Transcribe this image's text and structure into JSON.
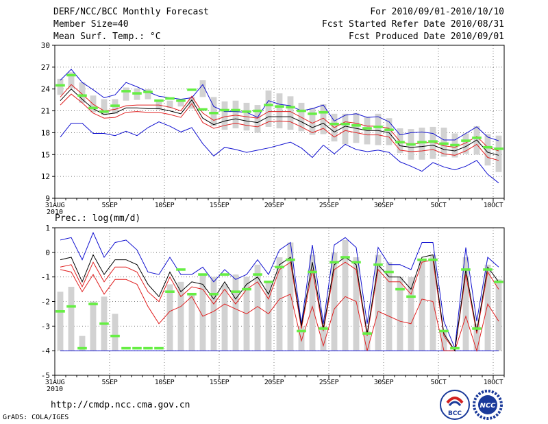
{
  "header": {
    "title": "DERF/NCC/BCC Monthly Forecast",
    "member_size": "Member Size=40",
    "variable": "Mean Surf. Temp.: °C",
    "period": "For 2010/09/01-2010/10/10",
    "started": "Fcst Started Refer Date 2010/08/31",
    "produced": "Fcst Produced Date 2010/09/01"
  },
  "precip_label": "Prec.: log(mm/d)",
  "footer": {
    "url": "http://cmdp.ncc.cma.gov.cn",
    "credit": "GrADS: COLA/IGES"
  },
  "logos": {
    "bcc_text": "BCC",
    "ncc_text": "NCC"
  },
  "colors": {
    "box": "#d2d2d2",
    "mean": "#000000",
    "sd": "#e02020",
    "range": "#1010d0",
    "obs": "#66ee44"
  },
  "chart_data": [
    {
      "type": "box-ensemble",
      "name": "Mean Surf. Temp.",
      "ylabel": "°C",
      "ylim": [
        9,
        30
      ],
      "yticks": [
        9,
        12,
        15,
        18,
        21,
        24,
        27,
        30
      ],
      "x_days": 41,
      "x_ticks": [
        {
          "day": 0,
          "label": "31AUG",
          "sub": "2010"
        },
        {
          "day": 5,
          "label": "5SEP"
        },
        {
          "day": 10,
          "label": "10SEP"
        },
        {
          "day": 15,
          "label": "15SEP"
        },
        {
          "day": 20,
          "label": "20SEP"
        },
        {
          "day": 25,
          "label": "25SEP"
        },
        {
          "day": 30,
          "label": "30SEP"
        },
        {
          "day": 35,
          "label": "5OCT"
        },
        {
          "day": 40,
          "label": "10OCT"
        }
      ],
      "box_low": [
        23.2,
        24.1,
        22.1,
        20.8,
        20.4,
        20.6,
        22.4,
        22.5,
        22.6,
        21.2,
        21.4,
        21.6,
        21.3,
        22.9,
        18.9,
        18.4,
        18.6,
        18.3,
        18.0,
        18.8,
        18.6,
        18.4,
        18.2,
        17.7,
        17.8,
        16.8,
        16.4,
        16.6,
        16.4,
        16.3,
        16.3,
        15.2,
        14.3,
        14.3,
        14.4,
        14.7,
        14.6,
        15.1,
        15.0,
        13.5,
        12.6
      ],
      "box_high": [
        25.4,
        26.3,
        24.9,
        23.1,
        22.6,
        22.6,
        24.2,
        24.1,
        24.0,
        22.3,
        22.4,
        22.5,
        22.9,
        25.2,
        22.9,
        22.3,
        22.4,
        22.1,
        21.8,
        23.8,
        23.4,
        23.0,
        22.1,
        21.4,
        21.9,
        20.6,
        20.6,
        20.7,
        20.2,
        20.6,
        20.0,
        18.6,
        18.5,
        18.7,
        18.8,
        18.7,
        17.9,
        17.9,
        18.9,
        17.8,
        17.6
      ],
      "upper": [
        25.2,
        26.7,
        24.9,
        23.9,
        22.8,
        23.2,
        24.9,
        24.3,
        23.6,
        23.0,
        22.8,
        22.6,
        22.8,
        24.6,
        21.6,
        20.9,
        20.9,
        20.8,
        20.1,
        22.4,
        21.9,
        21.7,
        21.0,
        21.3,
        21.8,
        19.6,
        20.4,
        20.6,
        20.1,
        20.2,
        19.5,
        17.7,
        18.0,
        18.1,
        17.9,
        17.0,
        17.0,
        17.9,
        18.8,
        17.4,
        16.9
      ],
      "sd_high": [
        22.9,
        24.6,
        23.3,
        21.9,
        21.0,
        21.2,
        21.7,
        21.8,
        21.8,
        21.8,
        21.5,
        21.0,
        23.0,
        20.7,
        19.7,
        20.2,
        20.4,
        20.2,
        20.0,
        20.9,
        20.9,
        20.9,
        20.1,
        19.3,
        20.0,
        18.7,
        19.5,
        19.3,
        18.9,
        18.9,
        18.6,
        16.8,
        16.4,
        16.6,
        16.7,
        16.2,
        16.0,
        16.6,
        17.5,
        16.0,
        15.5
      ],
      "mean": [
        22.4,
        24.0,
        22.6,
        21.3,
        20.5,
        20.7,
        21.4,
        21.4,
        21.3,
        21.3,
        21.0,
        20.6,
        22.5,
        20.0,
        19.1,
        19.6,
        19.9,
        19.6,
        19.4,
        20.2,
        20.2,
        20.2,
        19.5,
        18.7,
        19.3,
        18.1,
        18.9,
        18.6,
        18.3,
        18.3,
        18.0,
        16.2,
        16.0,
        16.1,
        16.3,
        15.7,
        15.5,
        16.1,
        17.0,
        15.3,
        14.9
      ],
      "sd_low": [
        21.8,
        23.3,
        22.1,
        20.7,
        20.0,
        20.1,
        20.8,
        20.9,
        20.8,
        20.8,
        20.5,
        20.1,
        22.0,
        19.4,
        18.6,
        19.0,
        19.3,
        19.0,
        18.8,
        19.5,
        19.6,
        19.5,
        18.8,
        18.0,
        18.6,
        17.4,
        18.3,
        18.0,
        17.7,
        17.7,
        17.4,
        15.6,
        15.4,
        15.5,
        15.7,
        15.1,
        14.9,
        15.5,
        16.4,
        14.6,
        14.2
      ],
      "lower": [
        17.4,
        19.3,
        19.3,
        17.9,
        17.9,
        17.6,
        18.2,
        17.6,
        18.7,
        19.5,
        18.9,
        18.1,
        18.7,
        16.5,
        14.8,
        16.0,
        15.7,
        15.3,
        15.6,
        15.9,
        16.3,
        16.7,
        15.9,
        14.6,
        16.3,
        15.1,
        16.4,
        15.7,
        15.4,
        15.6,
        15.3,
        14.0,
        13.4,
        12.7,
        13.9,
        13.3,
        12.9,
        13.4,
        14.2,
        12.3,
        11.1
      ],
      "obs": [
        24.5,
        25.9,
        23.1,
        21.4,
        20.9,
        21.7,
        23.7,
        23.4,
        23.6,
        22.4,
        22.7,
        22.4,
        23.9,
        21.2,
        20.7,
        21.1,
        21.1,
        20.9,
        21.0,
        21.8,
        21.6,
        21.5,
        21.0,
        20.6,
        20.8,
        19.2,
        19.2,
        19.0,
        18.6,
        18.8,
        18.4,
        16.7,
        16.4,
        16.7,
        16.8,
        16.5,
        16.3,
        16.9,
        17.3,
        16.0,
        15.8
      ]
    },
    {
      "type": "box-ensemble",
      "name": "Precipitation",
      "ylabel": "log(mm/d)",
      "ylim": [
        -5,
        1
      ],
      "yticks": [
        -5,
        -4,
        -3,
        -2,
        -1,
        0,
        1
      ],
      "x_days": 41,
      "x_ticks": [
        {
          "day": 0,
          "label": "31AUG",
          "sub": "2010"
        },
        {
          "day": 5,
          "label": "5SEP"
        },
        {
          "day": 10,
          "label": "10SEP"
        },
        {
          "day": 15,
          "label": "15SEP"
        },
        {
          "day": 20,
          "label": "20SEP"
        },
        {
          "day": 25,
          "label": "25SEP"
        },
        {
          "day": 30,
          "label": "30SEP"
        },
        {
          "day": 35,
          "label": "5OCT"
        },
        {
          "day": 40,
          "label": "10OCT"
        }
      ],
      "box_low": [
        -4.0,
        -4.0,
        -4.0,
        -4.0,
        -4.0,
        -4.0,
        -4.0,
        -4.0,
        -4.0,
        -4.0,
        -4.0,
        -4.0,
        -4.0,
        -4.0,
        -4.0,
        -4.0,
        -4.0,
        -4.0,
        -4.0,
        -4.0,
        -4.0,
        -4.0,
        -4.0,
        -4.0,
        -4.0,
        -4.0,
        -4.0,
        -4.0,
        -4.0,
        -4.0,
        -4.0,
        -4.0,
        -4.0,
        -4.0,
        -4.0,
        -4.0,
        -4.0,
        -4.0,
        -4.0,
        -4.0,
        -4.0
      ],
      "box_high": [
        -1.6,
        -1.4,
        -3.4,
        -2.0,
        -1.8,
        -2.5,
        -4.0,
        -4.0,
        -4.0,
        -4.0,
        -1.3,
        -1.2,
        -1.7,
        -0.9,
        -1.0,
        -1.3,
        -0.9,
        -1.0,
        -0.5,
        -1.2,
        -0.2,
        0.4,
        -3.0,
        -0.1,
        -3.0,
        0.0,
        0.5,
        -0.2,
        -3.2,
        -0.1,
        -0.4,
        -1.0,
        -1.0,
        -0.3,
        -0.1,
        -3.2,
        -4.0,
        -0.2,
        -2.9,
        -0.5,
        -1.1
      ],
      "upper": [
        0.5,
        0.6,
        -0.3,
        0.8,
        -0.2,
        0.4,
        0.5,
        0.1,
        -0.8,
        -0.9,
        -0.2,
        -0.9,
        -0.9,
        -0.6,
        -1.2,
        -0.7,
        -1.1,
        -0.9,
        -0.3,
        -0.9,
        0.1,
        0.4,
        -2.9,
        0.3,
        -2.9,
        0.3,
        0.6,
        0.2,
        -2.9,
        0.2,
        -0.5,
        -0.5,
        -0.7,
        0.4,
        0.4,
        -2.8,
        -3.9,
        0.2,
        -2.8,
        -0.2,
        -0.6
      ],
      "mean": [
        -0.3,
        -0.2,
        -1.2,
        -0.1,
        -0.9,
        -0.3,
        -0.3,
        -0.5,
        -1.3,
        -1.8,
        -0.8,
        -1.6,
        -1.2,
        -1.3,
        -1.9,
        -1.2,
        -1.9,
        -1.3,
        -1.0,
        -1.7,
        -0.5,
        -0.2,
        -3.0,
        -0.4,
        -3.1,
        -0.5,
        -0.2,
        -0.5,
        -3.3,
        -0.5,
        -1.0,
        -1.0,
        -1.5,
        -0.2,
        -0.1,
        -3.3,
        -4.0,
        -0.7,
        -3.2,
        -0.6,
        -1.2
      ],
      "sd_high": [
        -0.6,
        -0.5,
        -1.4,
        -0.4,
        -1.2,
        -0.6,
        -0.6,
        -0.8,
        -1.6,
        -2.0,
        -1.0,
        -1.8,
        -1.4,
        -1.5,
        -2.1,
        -1.5,
        -2.1,
        -1.5,
        -1.2,
        -1.9,
        -0.7,
        -0.4,
        -3.1,
        -0.7,
        -3.2,
        -0.7,
        -0.4,
        -0.7,
        -3.4,
        -0.7,
        -1.2,
        -1.2,
        -1.7,
        -0.4,
        -0.3,
        -3.4,
        -4.0,
        -0.9,
        -3.3,
        -0.8,
        -1.5
      ],
      "sd_low": [
        -0.7,
        -0.8,
        -1.6,
        -0.9,
        -1.7,
        -1.1,
        -1.1,
        -1.3,
        -2.2,
        -2.9,
        -2.4,
        -2.2,
        -1.8,
        -2.6,
        -2.4,
        -2.1,
        -2.3,
        -2.5,
        -2.2,
        -2.5,
        -1.9,
        -1.7,
        -3.6,
        -2.2,
        -3.8,
        -2.3,
        -1.8,
        -2.0,
        -4.0,
        -2.4,
        -2.6,
        -2.8,
        -2.9,
        -1.9,
        -2.0,
        -4.0,
        -4.0,
        -2.6,
        -4.0,
        -2.1,
        -2.8
      ],
      "lower": [
        -4.0,
        -4.0,
        -4.0,
        -4.0,
        -4.0,
        -4.0,
        -4.0,
        -4.0,
        -4.0,
        -4.0,
        -4.0,
        -4.0,
        -4.0,
        -4.0,
        -4.0,
        -4.0,
        -4.0,
        -4.0,
        -4.0,
        -4.0,
        -4.0,
        -4.0,
        -4.0,
        -4.0,
        -4.0,
        -4.0,
        -4.0,
        -4.0,
        -4.0,
        -4.0,
        -4.0,
        -4.0,
        -4.0,
        -4.0,
        -4.0,
        -4.0,
        -4.0,
        -4.0,
        -4.0,
        -4.0,
        -4.0
      ],
      "obs": [
        -2.4,
        -2.2,
        -3.9,
        -2.1,
        -2.9,
        -3.4,
        -3.9,
        -3.9,
        -3.9,
        -3.9,
        -1.6,
        -0.7,
        -1.7,
        -0.9,
        -1.7,
        -0.9,
        -1.6,
        -1.5,
        -0.9,
        -1.2,
        -0.6,
        -0.3,
        -3.2,
        -0.8,
        -3.1,
        -0.4,
        -0.2,
        -0.4,
        -3.3,
        -0.5,
        -0.8,
        -1.5,
        -1.8,
        -0.3,
        -0.3,
        -3.2,
        -3.9,
        -0.7,
        -3.1,
        -0.7,
        -1.2
      ]
    }
  ]
}
